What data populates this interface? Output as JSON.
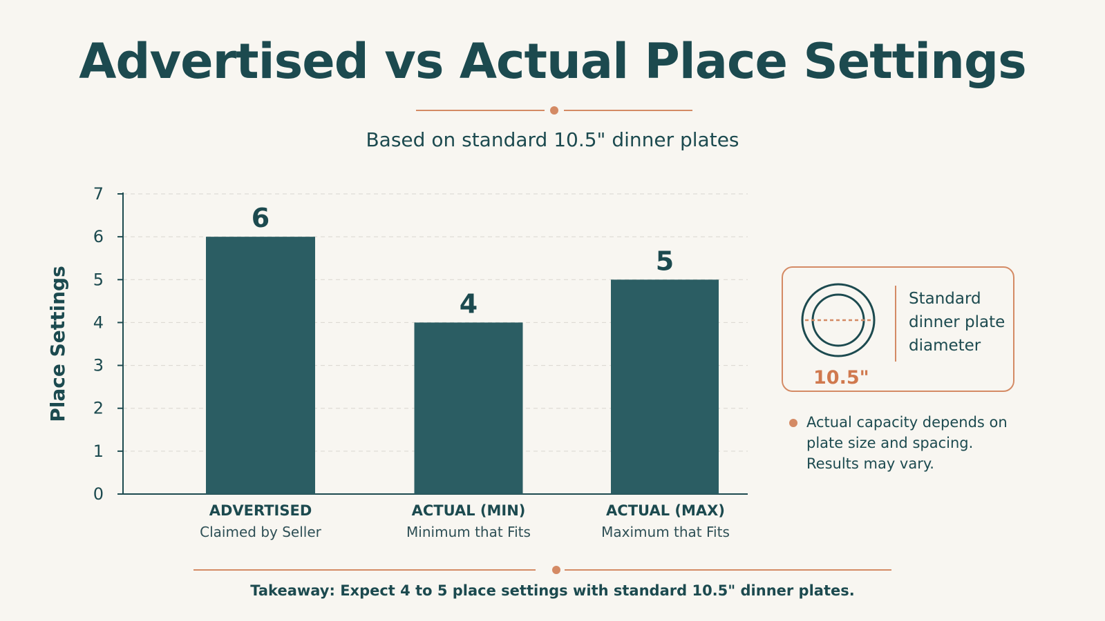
{
  "title": "Advertised vs Actual Place Settings",
  "subtitle": "Based on standard 10.5\" dinner plates",
  "colors": {
    "bar": "#2b5d63",
    "accent": "#d48a64",
    "text": "#1c4a4f",
    "background": "#f8f6f1"
  },
  "chart_data": {
    "type": "bar",
    "categories": [
      "ADVERTISED",
      "ACTUAL (MIN)",
      "ACTUAL (MAX)"
    ],
    "category_sublabels": [
      "Claimed by Seller",
      "Minimum that Fits",
      "Maximum that Fits"
    ],
    "values": [
      6,
      4,
      5
    ],
    "data_labels": [
      "6",
      "4",
      "5"
    ],
    "ylabel": "Place Settings",
    "xlabel": "",
    "ylim": [
      0,
      7
    ],
    "yticks": [
      "0",
      "1",
      "2",
      "3",
      "4",
      "5",
      "6",
      "7"
    ],
    "grid": true
  },
  "legend": {
    "plate_size": "10.5\"",
    "plate_icon": "dinner-plate-icon",
    "text": "Standard dinner plate diameter"
  },
  "note": "Actual capacity depends on plate size and spacing. Results may vary.",
  "takeaway": "Takeaway: Expect 4 to 5 place settings with standard 10.5\" dinner plates."
}
